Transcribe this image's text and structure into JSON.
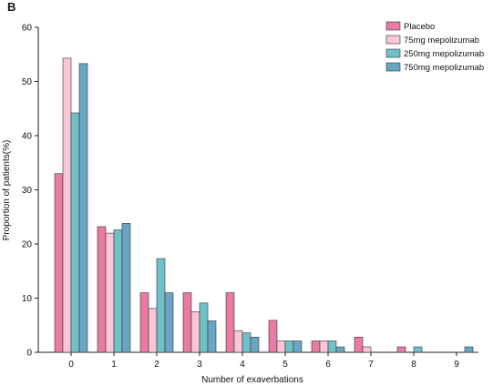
{
  "panel_label": "B",
  "chart_data": {
    "type": "bar",
    "xlabel": "Number of exaverbations",
    "ylabel": "Proportion of patients(%)",
    "ylim": [
      0,
      60
    ],
    "yticks": [
      0,
      10,
      20,
      30,
      40,
      50,
      60
    ],
    "categories": [
      "0",
      "1",
      "2",
      "3",
      "4",
      "5",
      "6",
      "7",
      "8",
      "9"
    ],
    "grid": false,
    "legend_position": "top-right",
    "series": [
      {
        "name": "Placebo",
        "color": "#e87aa4",
        "values": [
          33,
          23.2,
          11,
          11,
          11,
          5.9,
          2.1,
          2.8,
          1,
          0
        ]
      },
      {
        "name": "75mg mepolizumab",
        "color": "#f8c6d4",
        "values": [
          54.3,
          22,
          8.1,
          7.5,
          4,
          2.1,
          2.1,
          1,
          0,
          0
        ]
      },
      {
        "name": "250mg mepolizumab",
        "color": "#6fc0c9",
        "values": [
          44.2,
          22.6,
          17.3,
          9.1,
          3.6,
          2.1,
          2.1,
          0,
          1,
          0
        ]
      },
      {
        "name": "750mg mepolizumab",
        "color": "#6aa6c3",
        "values": [
          53.3,
          23.8,
          11,
          5.8,
          2.8,
          2.1,
          1,
          0,
          0,
          1
        ]
      }
    ]
  }
}
